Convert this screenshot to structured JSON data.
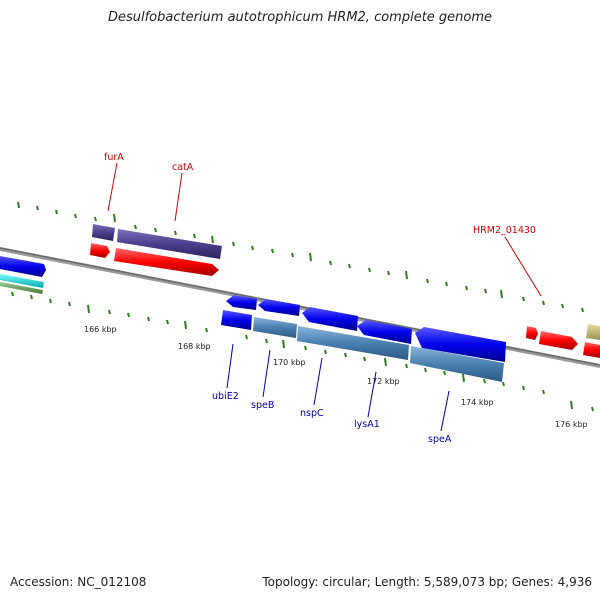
{
  "title": "Desulfobacterium autotrophicum HRM2, complete genome",
  "footer": {
    "accession": "Accession: NC_012108",
    "summary": "Topology: circular; Length: 5,589,073 bp; Genes: 4,936"
  },
  "scale_labels": [
    "166 kbp",
    "168 kbp",
    "170 kbp",
    "172 kbp",
    "174 kbp",
    "176 kbp"
  ],
  "gene_labels_top": [
    "furA",
    "catA",
    "HRM2_01430"
  ],
  "gene_labels_bottom": [
    "ubiE2",
    "speB",
    "nspC",
    "lysA1",
    "speA"
  ],
  "colors": {
    "backbone": "#808080",
    "tick": "#2e7d1e",
    "red_label": "#cc0000",
    "blue_label": "#0000aa",
    "forward_cds": "#ff0000",
    "reverse_cds": "#0000ee",
    "gene_purple": "#4a3f8c",
    "gene_steel": "#4a7fb0"
  }
}
